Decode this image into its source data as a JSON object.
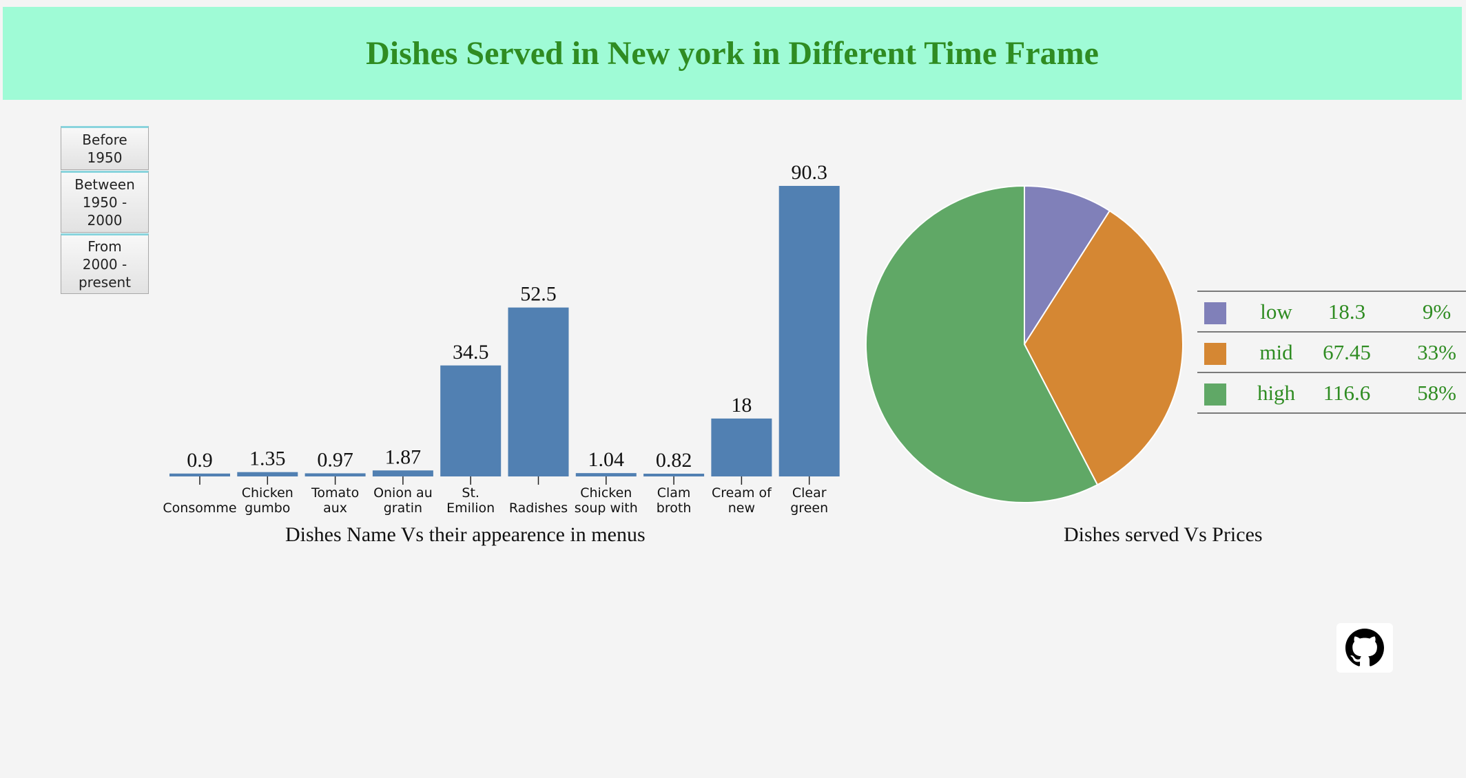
{
  "page": {
    "title": "Dishes Served in New york in Different Time Frame"
  },
  "buttons": [
    {
      "label": "Before\n1950"
    },
    {
      "label": "Between\n1950 -\n2000"
    },
    {
      "label": "From\n2000 -\npresent"
    }
  ],
  "chart_data": [
    {
      "type": "bar",
      "title": "Dishes Name Vs their appearence in menus",
      "categories": [
        [
          "Consomme"
        ],
        [
          "Chicken",
          "gumbo"
        ],
        [
          "Tomato",
          "aux"
        ],
        [
          "Onion au",
          "gratin"
        ],
        [
          "St.",
          "Emilion"
        ],
        [
          "Radishes"
        ],
        [
          "Chicken",
          "soup with"
        ],
        [
          "Clam",
          "broth"
        ],
        [
          "Cream of",
          "new"
        ],
        [
          "Clear",
          "green"
        ]
      ],
      "values": [
        0.9,
        1.35,
        0.97,
        1.87,
        34.5,
        52.5,
        1.04,
        0.82,
        18,
        90.3
      ],
      "value_labels": [
        "0.9",
        "1.35",
        "0.97",
        "1.87",
        "34.5",
        "52.5",
        "1.04",
        "0.82",
        "18",
        "90.3"
      ],
      "color": "#5180b2",
      "grid": false
    },
    {
      "type": "pie",
      "title": "Dishes served Vs Prices",
      "slices": [
        {
          "label": "low",
          "value": 18.3,
          "value_label": "18.3",
          "percent": "9%",
          "color": "#8080b9"
        },
        {
          "label": "mid",
          "value": 67.45,
          "value_label": "67.45",
          "percent": "33%",
          "color": "#d58733"
        },
        {
          "label": "high",
          "value": 116.6,
          "value_label": "116.6",
          "percent": "58%",
          "color": "#60a866"
        }
      ],
      "legend_placement": "right"
    }
  ],
  "footer": {
    "github_icon": "github-icon"
  }
}
